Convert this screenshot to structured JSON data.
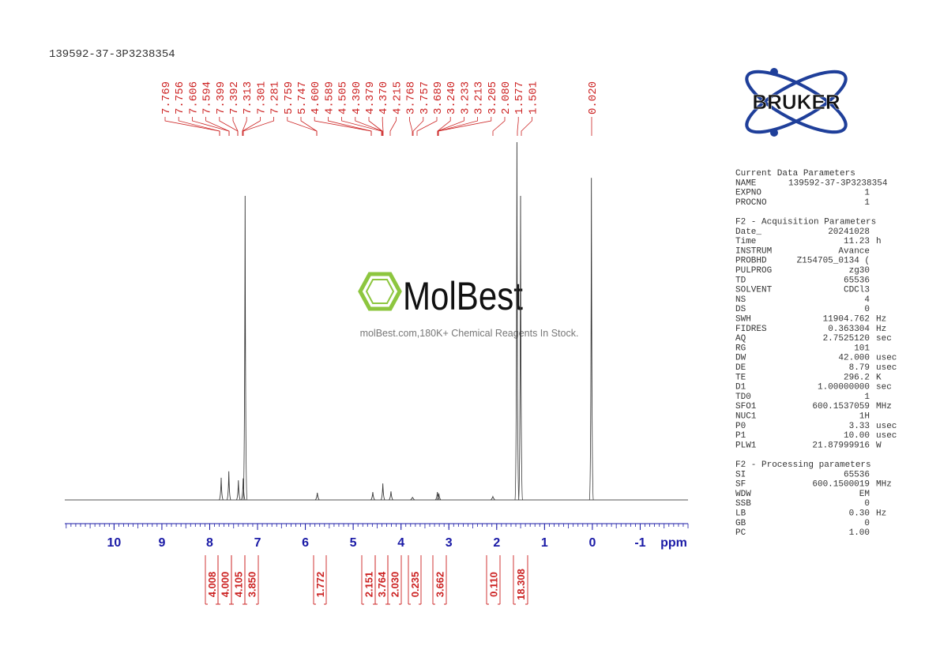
{
  "header": {
    "title": "139592-37-3P3238354"
  },
  "spectrum": {
    "xlim": [
      11.03,
      -2.0
    ],
    "xticks": [
      10,
      9,
      8,
      7,
      6,
      5,
      4,
      3,
      2,
      1,
      0,
      -1
    ],
    "xlabel": "ppm",
    "peak_labels": [
      "7.769",
      "7.756",
      "7.606",
      "7.594",
      "7.399",
      "7.392",
      "7.313",
      "7.301",
      "7.281",
      "5.759",
      "5.747",
      "4.600",
      "4.589",
      "4.505",
      "4.390",
      "4.379",
      "4.370",
      "4.215",
      "3.768",
      "3.757",
      "3.689",
      "3.240",
      "3.233",
      "3.213",
      "3.205",
      "2.080",
      "1.577",
      "1.501",
      "0.020"
    ],
    "peaks": [
      {
        "ppm": 7.76,
        "intensity": 6.2
      },
      {
        "ppm": 7.6,
        "intensity": 8
      },
      {
        "ppm": 7.4,
        "intensity": 5.5
      },
      {
        "ppm": 7.3,
        "intensity": 6
      },
      {
        "ppm": 7.26,
        "intensity": 85
      },
      {
        "ppm": 5.75,
        "intensity": 2
      },
      {
        "ppm": 4.59,
        "intensity": 2.2
      },
      {
        "ppm": 4.38,
        "intensity": 4.6
      },
      {
        "ppm": 4.21,
        "intensity": 2.4
      },
      {
        "ppm": 3.76,
        "intensity": 0.7
      },
      {
        "ppm": 3.24,
        "intensity": 2.2
      },
      {
        "ppm": 3.21,
        "intensity": 1.8
      },
      {
        "ppm": 2.08,
        "intensity": 0.9
      },
      {
        "ppm": 1.577,
        "intensity": 100
      },
      {
        "ppm": 1.501,
        "intensity": 85
      },
      {
        "ppm": 0.02,
        "intensity": 90
      }
    ],
    "integrals": [
      "4.008",
      "4.000",
      "4.105",
      "3.850",
      "1.772",
      "2.151",
      "3.764",
      "2.030",
      "0.235",
      "3.662",
      "0.110",
      "18.308"
    ]
  },
  "watermark": {
    "brand": "MolBest",
    "tagline": "molBest.com,180K+ Chemical Reagents In Stock."
  },
  "logo": {
    "text": "BRUKER"
  },
  "parameters": [
    {
      "heading": "Current Data Parameters",
      "rows": [
        [
          "NAME",
          "139592-37-3P3238354",
          ""
        ],
        [
          "EXPNO",
          "1",
          ""
        ],
        [
          "PROCNO",
          "1",
          ""
        ]
      ]
    },
    {
      "heading": "F2 - Acquisition Parameters",
      "rows": [
        [
          "Date_",
          "20241028",
          ""
        ],
        [
          "Time",
          "11.23",
          "h"
        ],
        [
          "INSTRUM",
          "Avance",
          ""
        ],
        [
          "PROBHD",
          "Z154705_0134 (",
          ""
        ],
        [
          "PULPROG",
          "zg30",
          ""
        ],
        [
          "TD",
          "65536",
          ""
        ],
        [
          "SOLVENT",
          "CDCl3",
          ""
        ],
        [
          "NS",
          "4",
          ""
        ],
        [
          "DS",
          "0",
          ""
        ],
        [
          "SWH",
          "11904.762",
          "Hz"
        ],
        [
          "FIDRES",
          "0.363304",
          "Hz"
        ],
        [
          "AQ",
          "2.7525120",
          "sec"
        ],
        [
          "RG",
          "101",
          ""
        ],
        [
          "DW",
          "42.000",
          "usec"
        ],
        [
          "DE",
          "8.79",
          "usec"
        ],
        [
          "TE",
          "296.2",
          "K"
        ],
        [
          "D1",
          "1.00000000",
          "sec"
        ],
        [
          "TD0",
          "1",
          ""
        ],
        [
          "SFO1",
          "600.1537059",
          "MHz"
        ],
        [
          "NUC1",
          "1H",
          ""
        ],
        [
          "P0",
          "3.33",
          "usec"
        ],
        [
          "P1",
          "10.00",
          "usec"
        ],
        [
          "PLW1",
          "21.87999916",
          "W"
        ]
      ]
    },
    {
      "heading": "F2 - Processing parameters",
      "rows": [
        [
          "SI",
          "65536",
          ""
        ],
        [
          "SF",
          "600.1500019",
          "MHz"
        ],
        [
          "WDW",
          "EM",
          ""
        ],
        [
          "SSB",
          "0",
          ""
        ],
        [
          "LB",
          "0.30",
          "Hz"
        ],
        [
          "GB",
          "0",
          ""
        ],
        [
          "PC",
          "1.00",
          ""
        ]
      ]
    }
  ]
}
